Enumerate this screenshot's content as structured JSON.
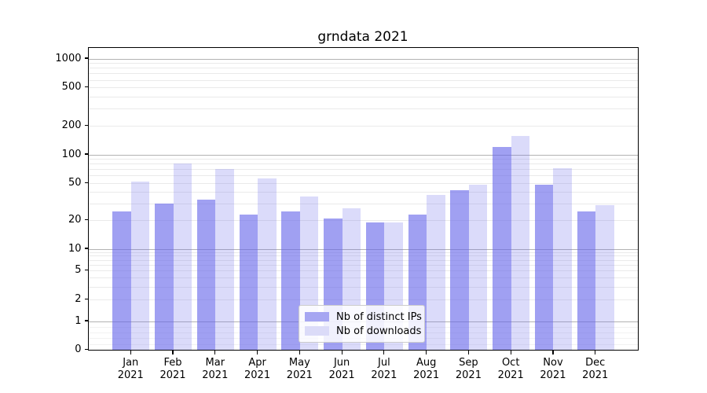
{
  "title": "grndata 2021",
  "colors": {
    "grid_major": "#b3b3b3",
    "grid_minor": "#eaeaea",
    "grid_sub1": "#f2f2f2",
    "axis": "#000000"
  },
  "chart_data": {
    "type": "bar",
    "scale": "symlog",
    "title": "grndata 2021",
    "xlabel": "",
    "ylabel": "",
    "categories": [
      "Jan 2021",
      "Feb 2021",
      "Mar 2021",
      "Apr 2021",
      "May 2021",
      "Jun 2021",
      "Jul 2021",
      "Aug 2021",
      "Sep 2021",
      "Oct 2021",
      "Nov 2021",
      "Dec 2021"
    ],
    "series": [
      {
        "name": "Nb of distinct IPs",
        "swatch": "#a6a6f2",
        "fill": "rgba(101,101,234,0.62)",
        "values": [
          25,
          30,
          33,
          23,
          25,
          21,
          19,
          23,
          42,
          120,
          48,
          25
        ]
      },
      {
        "name": "Nb of downloads",
        "swatch": "#dbdbf8",
        "fill": "rgba(101,101,234,0.235)",
        "values": [
          52,
          80,
          70,
          56,
          36,
          27,
          19,
          37,
          48,
          155,
          72,
          29
        ]
      }
    ],
    "y_ticks": [
      0,
      1,
      2,
      5,
      10,
      20,
      50,
      100,
      200,
      500,
      1000
    ],
    "ylim": [
      0,
      1300
    ],
    "grid": true,
    "legend_position": "lower center"
  }
}
